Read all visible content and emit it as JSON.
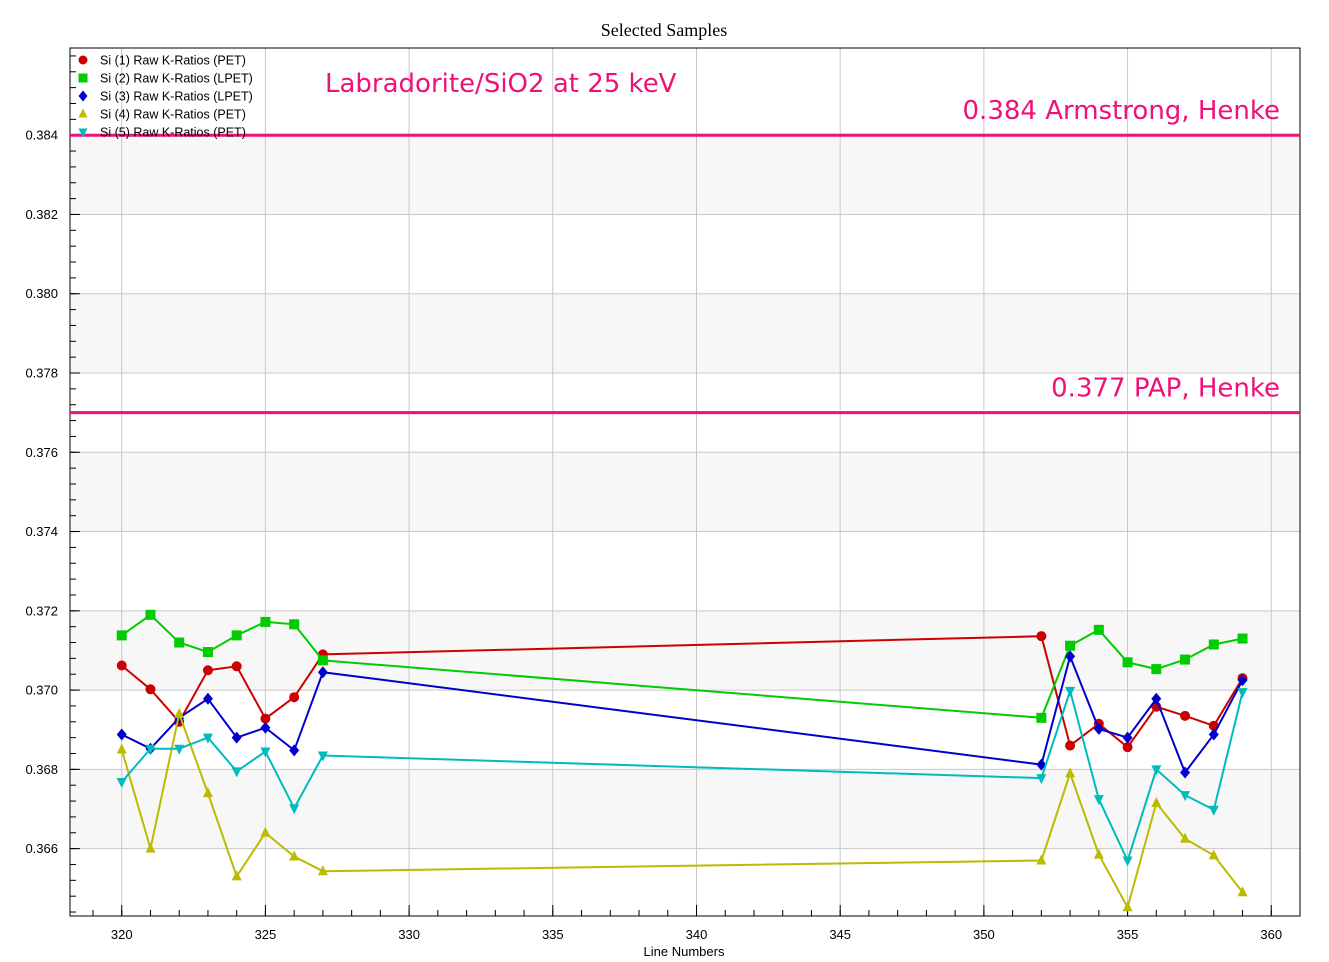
{
  "chart_data": {
    "type": "line",
    "title": "Selected Samples",
    "xlabel": "Line Numbers",
    "ylabel": "",
    "xlim": [
      318.2,
      361.0
    ],
    "ylim": [
      0.3643,
      0.3862
    ],
    "x_ticks": [
      320,
      325,
      330,
      335,
      340,
      345,
      350,
      355,
      360
    ],
    "y_ticks": [
      0.366,
      0.368,
      0.37,
      0.372,
      0.374,
      0.376,
      0.378,
      0.38,
      0.382,
      0.384
    ],
    "grid": true,
    "legend_position": "top-left",
    "x": [
      320,
      321,
      322,
      323,
      324,
      325,
      326,
      327,
      352,
      353,
      354,
      355,
      356,
      357,
      358,
      359
    ],
    "series": [
      {
        "name": "Si (1) Raw K-Ratios (PET)",
        "color": "#cc0000",
        "marker": "circle",
        "values": [
          0.37062,
          0.37002,
          0.3692,
          0.3705,
          0.3706,
          0.36928,
          0.36982,
          0.3709,
          0.37136,
          0.3686,
          0.36915,
          0.36856,
          0.36958,
          0.36935,
          0.3691,
          0.3703
        ]
      },
      {
        "name": "Si (2) Raw K-Ratios (LPET)",
        "color": "#00cc00",
        "marker": "square",
        "values": [
          0.37138,
          0.3719,
          0.3712,
          0.37096,
          0.37138,
          0.37172,
          0.37166,
          0.37075,
          0.3693,
          0.37112,
          0.37152,
          0.3707,
          0.37053,
          0.37077,
          0.37115,
          0.3713
        ]
      },
      {
        "name": "Si (3) Raw K-Ratios (LPET)",
        "color": "#0000cc",
        "marker": "diamond",
        "values": [
          0.36888,
          0.36852,
          0.3693,
          0.36978,
          0.3688,
          0.36905,
          0.36848,
          0.37045,
          0.36812,
          0.37085,
          0.36902,
          0.3688,
          0.36978,
          0.36792,
          0.36888,
          0.37025
        ]
      },
      {
        "name": "Si (4) Raw K-Ratios (PET)",
        "color": "#bbbb00",
        "marker": "triangle-up",
        "values": [
          0.3685,
          0.366,
          0.3694,
          0.3674,
          0.3653,
          0.3664,
          0.3658,
          0.36543,
          0.3657,
          0.3679,
          0.36585,
          0.36452,
          0.36715,
          0.36625,
          0.36583,
          0.3649
        ]
      },
      {
        "name": "Si (5) Raw K-Ratios (PET)",
        "color": "#00bbbb",
        "marker": "triangle-down",
        "values": [
          0.36768,
          0.36852,
          0.36852,
          0.3688,
          0.36795,
          0.36845,
          0.36702,
          0.36835,
          0.36778,
          0.36998,
          0.36725,
          0.3657,
          0.368,
          0.36735,
          0.36698,
          0.36995
        ]
      }
    ],
    "reference_lines": [
      {
        "y": 0.384,
        "label": "0.384 Armstrong, Henke",
        "color": "#ee1177"
      },
      {
        "y": 0.377,
        "label": "0.377 PAP, Henke",
        "color": "#ee1177"
      }
    ],
    "annotation": {
      "text": "Labradorite/SiO2 at 25 keV",
      "color": "#ee1177"
    }
  }
}
